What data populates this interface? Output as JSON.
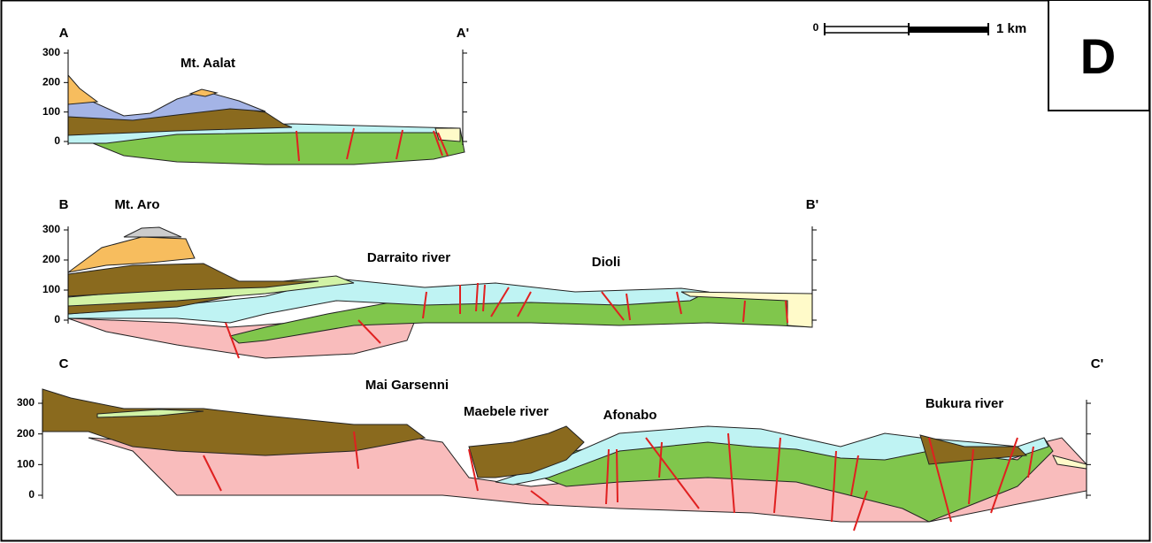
{
  "panel_label": "D",
  "scale_bar": {
    "start": "0",
    "end": "1 km"
  },
  "sections": [
    {
      "start_label": "A",
      "end_label": "A'",
      "elevation_ticks": [
        300,
        200,
        100,
        0
      ],
      "features": [
        "Mt. Aalat"
      ]
    },
    {
      "start_label": "B",
      "end_label": "B'",
      "elevation_ticks": [
        300,
        200,
        100,
        0
      ],
      "features": [
        "Mt. Aro",
        "Darraito river",
        "Dioli"
      ]
    },
    {
      "start_label": "C",
      "end_label": "C'",
      "elevation_ticks": [
        300,
        200,
        100,
        0
      ],
      "features": [
        "Mai Garsenni",
        "Maebele river",
        "Afonabo",
        "Bukura river"
      ]
    }
  ]
}
